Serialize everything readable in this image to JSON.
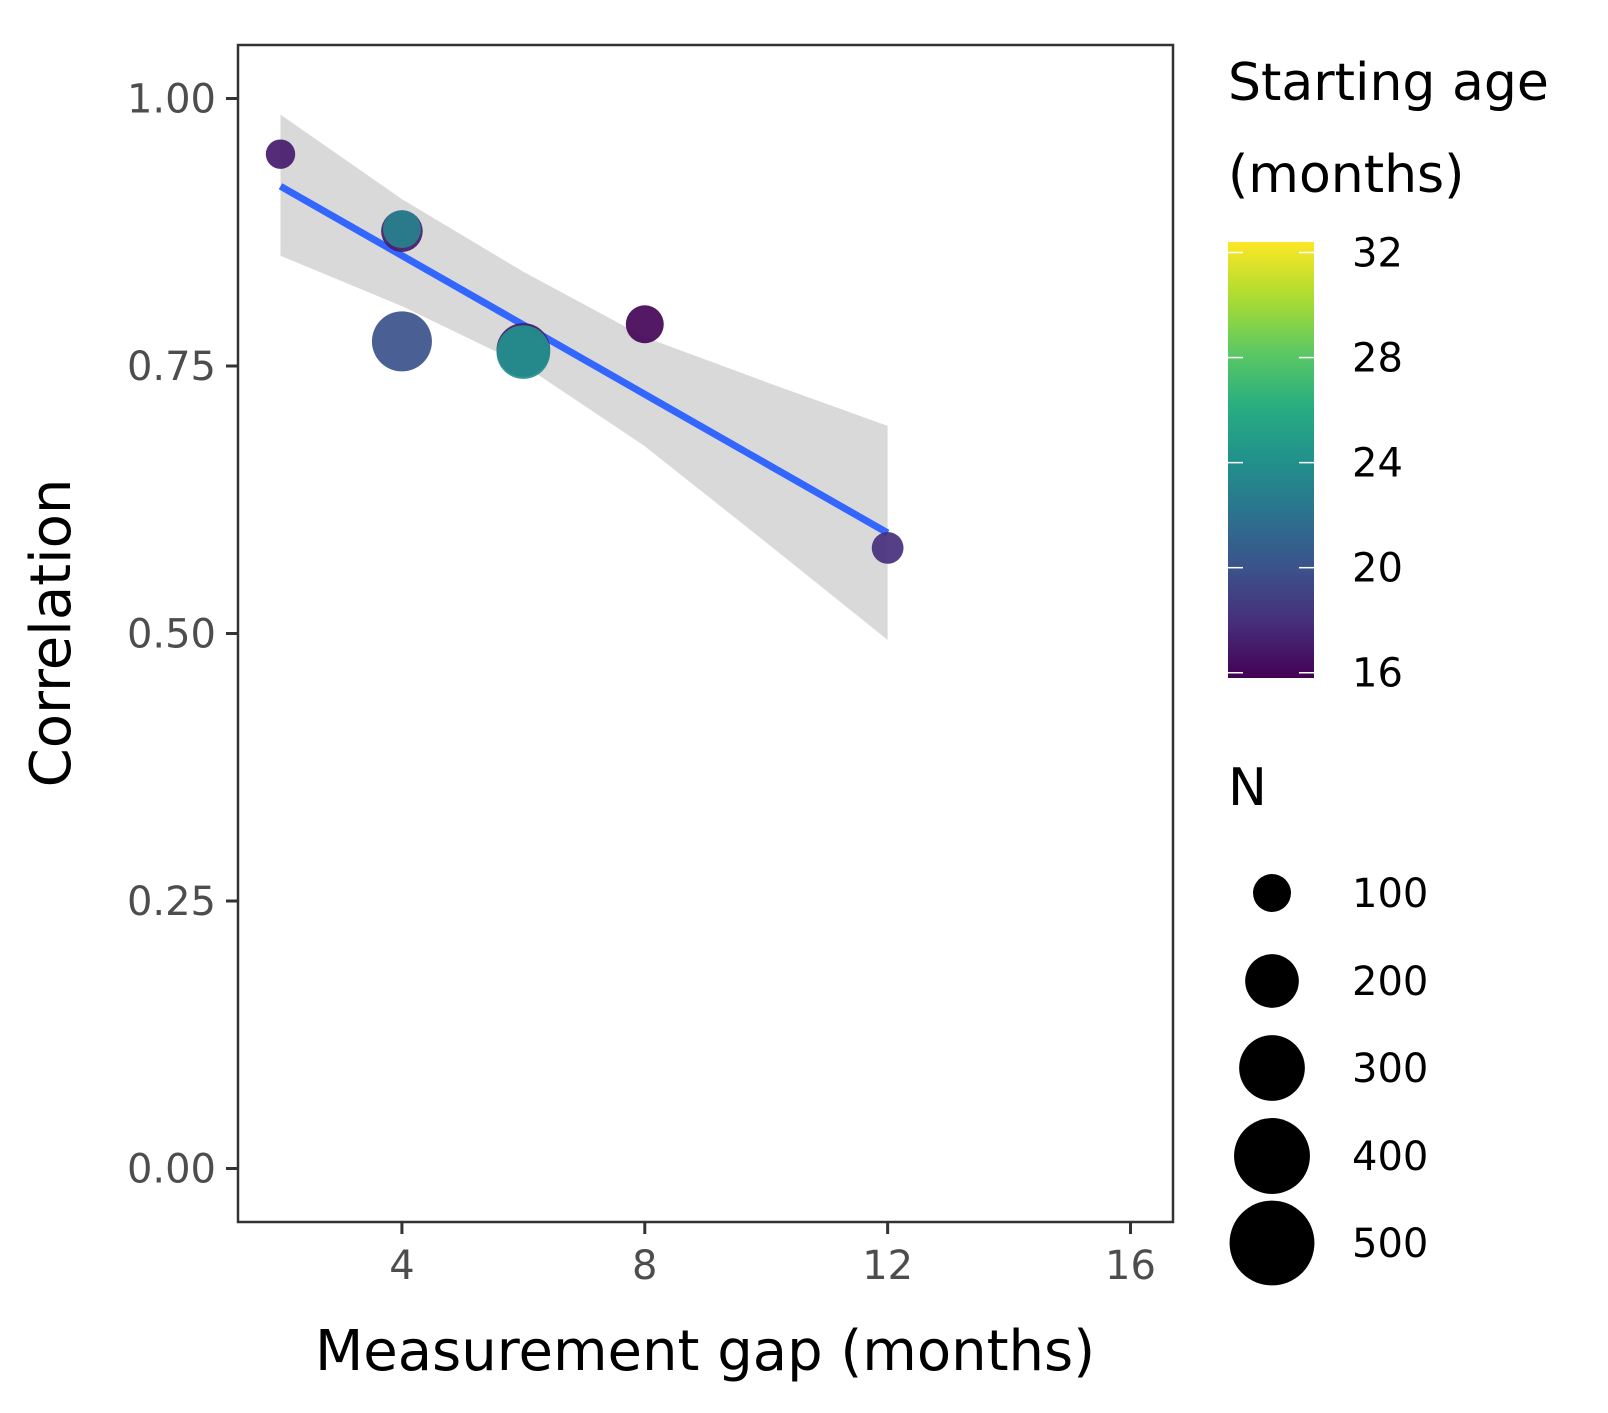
{
  "chart_data": {
    "type": "scatter",
    "xlabel": "Measurement gap (months)",
    "ylabel": "Correlation",
    "xlim": [
      1.3,
      16.7
    ],
    "ylim": [
      -0.05,
      1.05
    ],
    "x_ticks": [
      4,
      8,
      12,
      16
    ],
    "x_tick_labels": [
      "4",
      "8",
      "12",
      "16"
    ],
    "y_ticks": [
      0,
      0.25,
      0.5,
      0.75,
      1.0
    ],
    "y_tick_labels": [
      "0.00",
      "0.25",
      "0.50",
      "0.75",
      "1.00"
    ],
    "grid": false,
    "legend_position": "right",
    "points": [
      {
        "x": 2,
        "y": 0.948,
        "n": 60,
        "age": 17
      },
      {
        "x": 4,
        "y": 0.876,
        "n": 120,
        "age": 17
      },
      {
        "x": 4,
        "y": 0.878,
        "n": 100,
        "age": 23
      },
      {
        "x": 4,
        "y": 0.773,
        "n": 250,
        "age": 20
      },
      {
        "x": 6,
        "y": 0.765,
        "n": 200,
        "age": 17
      },
      {
        "x": 6,
        "y": 0.763,
        "n": 200,
        "age": 24
      },
      {
        "x": 8,
        "y": 0.789,
        "n": 100,
        "age": 16
      },
      {
        "x": 12,
        "y": 0.58,
        "n": 70,
        "age": 18
      }
    ],
    "fit_line": {
      "method": "linear",
      "color": "#3366FF",
      "x": [
        2,
        12
      ],
      "y": [
        0.918,
        0.594
      ],
      "ribbon_x": [
        2,
        4,
        6,
        8,
        10,
        12
      ],
      "ribbon_lower": [
        0.853,
        0.806,
        0.751,
        0.675,
        0.585,
        0.494
      ],
      "ribbon_upper": [
        0.985,
        0.906,
        0.838,
        0.777,
        0.735,
        0.694
      ],
      "ribbon_color": "#d9d9d9"
    },
    "color_legend": {
      "title_line1": "Starting age",
      "title_line2": "(months)",
      "range": [
        15.8,
        32.4
      ],
      "ticks": [
        16,
        20,
        24,
        28,
        32
      ],
      "tick_labels": [
        "16",
        "20",
        "24",
        "28",
        "32"
      ],
      "palette": "viridis"
    },
    "size_legend": {
      "title": "N",
      "values": [
        100,
        200,
        300,
        400,
        500
      ],
      "labels": [
        "100",
        "200",
        "300",
        "400",
        "500"
      ],
      "color": "#000000"
    }
  }
}
